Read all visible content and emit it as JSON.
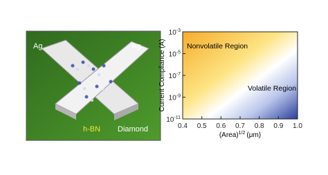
{
  "illustration": {
    "labels": [
      "Ag",
      "Ag",
      "h-BN",
      "Diamond"
    ]
  },
  "chart_data": {
    "type": "region",
    "ylabel": "Current Compliance (A)",
    "xlabel": "(Area)",
    "xlabel_exponent": "1/2",
    "xlabel_unit": "(μm)",
    "xlim": [
      0.4,
      1.0
    ],
    "xticks": [
      0.4,
      0.5,
      0.6,
      0.7,
      0.8,
      0.9,
      {
        "value": 1.0,
        "label": "1.0"
      }
    ],
    "ylim": [
      1e-11,
      0.001
    ],
    "ylog": true,
    "yticks": [
      {
        "value": 1e-11,
        "label": "10^-11"
      },
      {
        "value": 1e-09,
        "label": "10^-9"
      },
      {
        "value": 1e-07,
        "label": "10^-7"
      },
      {
        "value": 1e-05,
        "label": "10^-5"
      },
      {
        "value": 0.001,
        "label": "10^-3"
      }
    ],
    "annotations": [
      "Nonvolatile Region",
      "Volatile Region"
    ]
  }
}
